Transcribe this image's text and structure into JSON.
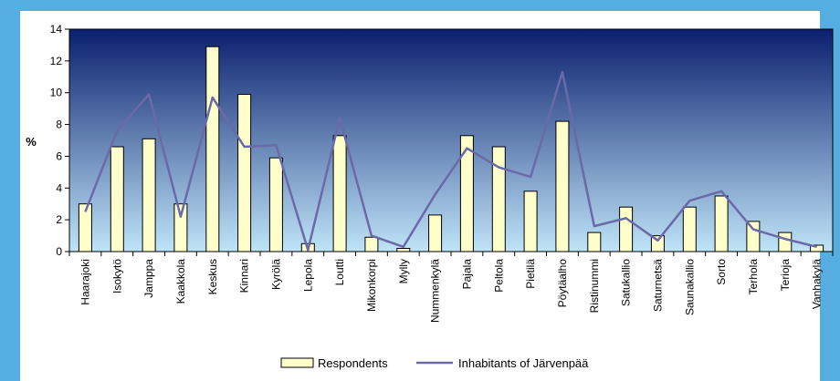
{
  "chart_data": {
    "type": "bar",
    "ylabel": "%",
    "ylim": [
      0,
      14
    ],
    "yticks": [
      0,
      2,
      4,
      6,
      8,
      10,
      12,
      14
    ],
    "grid": false,
    "legend_position": "bottom",
    "colors": {
      "frame": "#56aee0",
      "plot_top": "#0a1f6e",
      "plot_bottom": "#bfe4f8",
      "bar_fill": "#ffffcc",
      "bar_stroke": "#000000",
      "line": "#6b6aa8"
    },
    "categories": [
      "Haarajoki",
      "Isokytö",
      "Jamppa",
      "Kaakkola",
      "Keskus",
      "Kinnari",
      "Kyrölä",
      "Lepola",
      "Loutti",
      "Mikonkorpi",
      "Mylly",
      "Nummenkylä",
      "Pajala",
      "Peltola",
      "Pietilä",
      "Pöytäalho",
      "Ristinummi",
      "Satukallio",
      "Saturnetsä",
      "Saunakallio",
      "Sorto",
      "Terhola",
      "Terioja",
      "Vanhakylä"
    ],
    "series": [
      {
        "name": "Respondents",
        "type": "bar",
        "values": [
          3.0,
          6.6,
          7.1,
          3.0,
          12.9,
          9.9,
          5.9,
          0.5,
          7.3,
          0.9,
          0.2,
          2.3,
          7.3,
          6.6,
          3.8,
          8.2,
          1.2,
          2.8,
          1.0,
          2.8,
          3.5,
          1.9,
          1.2,
          0.4
        ]
      },
      {
        "name": "Inhabitants of Järvenpää",
        "type": "line",
        "values": [
          2.5,
          7.6,
          9.9,
          2.2,
          9.7,
          6.6,
          6.7,
          0.1,
          8.4,
          1.0,
          0.3,
          3.6,
          6.5,
          5.3,
          4.7,
          11.3,
          1.6,
          2.1,
          0.7,
          3.2,
          3.8,
          1.4,
          0.8,
          0.3
        ]
      }
    ]
  }
}
